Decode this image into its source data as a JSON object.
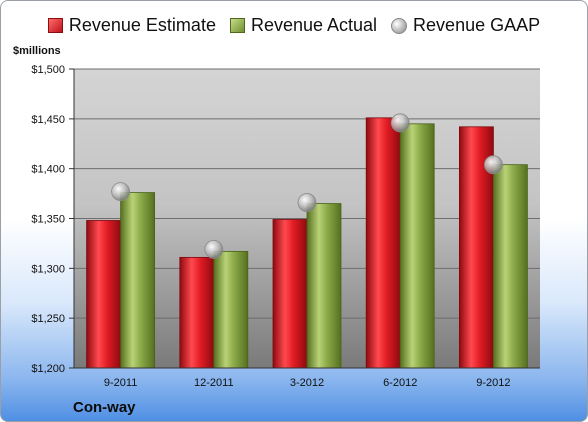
{
  "chart_data": {
    "type": "bar",
    "title": "",
    "unit_label": "$millions",
    "company": "Con-way",
    "categories": [
      "9-2011",
      "12-2011",
      "3-2012",
      "6-2012",
      "9-2012"
    ],
    "series": [
      {
        "name": "Revenue Estimate",
        "kind": "bar",
        "color": "#c8141c",
        "values": [
          1348,
          1311,
          1349,
          1451,
          1442
        ]
      },
      {
        "name": "Revenue Actual",
        "kind": "bar",
        "color": "#7e9c3a",
        "values": [
          1376,
          1317,
          1365,
          1445,
          1404
        ]
      },
      {
        "name": "Revenue GAAP",
        "kind": "marker",
        "color": "#b0b0b0",
        "values": [
          1377,
          1319,
          1366,
          1446,
          1404
        ]
      }
    ],
    "ylim": [
      1200,
      1500
    ],
    "yticks": [
      1200,
      1250,
      1300,
      1350,
      1400,
      1450,
      1500
    ],
    "ytick_labels": [
      "$1,200",
      "$1,250",
      "$1,300",
      "$1,350",
      "$1,400",
      "$1,450",
      "$1,500"
    ],
    "grid": true,
    "legend_position": "top"
  }
}
